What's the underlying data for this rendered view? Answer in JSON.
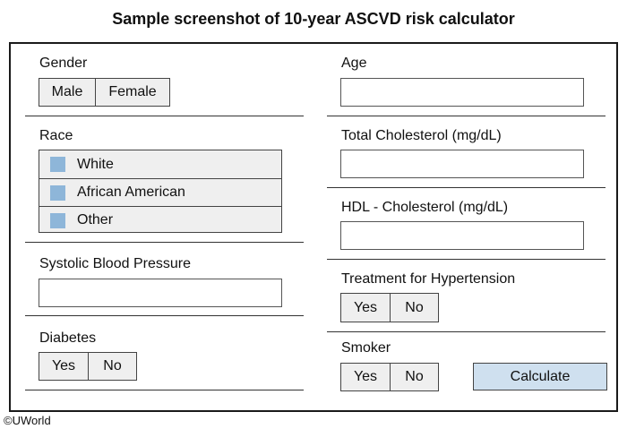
{
  "title": "Sample screenshot of 10-year ASCVD risk calculator",
  "left": {
    "gender": {
      "label": "Gender",
      "options": [
        "Male",
        "Female"
      ]
    },
    "race": {
      "label": "Race",
      "options": [
        "White",
        "African American",
        "Other"
      ]
    },
    "sbp": {
      "label": "Systolic Blood Pressure",
      "value": ""
    },
    "diabetes": {
      "label": "Diabetes",
      "options": [
        "Yes",
        "No"
      ]
    }
  },
  "right": {
    "age": {
      "label": "Age",
      "value": ""
    },
    "total_chol": {
      "label": "Total Cholesterol (mg/dL)",
      "value": ""
    },
    "hdl": {
      "label": "HDL - Cholesterol (mg/dL)",
      "value": ""
    },
    "htn": {
      "label": "Treatment for Hypertension",
      "options": [
        "Yes",
        "No"
      ]
    },
    "smoker": {
      "label": "Smoker",
      "options": [
        "Yes",
        "No"
      ]
    }
  },
  "calculate_label": "Calculate",
  "copyright": "©UWorld",
  "colors": {
    "race_marker": "#8eb6d9",
    "calculate_bg": "#cfe0ef"
  }
}
